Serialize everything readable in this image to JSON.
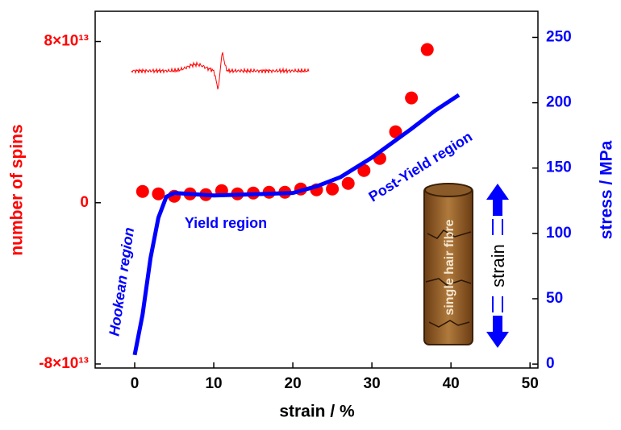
{
  "chart_data": {
    "type": "combo",
    "xlabel": "strain / %",
    "ylabel": "number of spins",
    "y2label": "stress / MPa",
    "xlim": [
      -5,
      51
    ],
    "xticks": [
      0,
      10,
      20,
      30,
      40,
      50
    ],
    "ylim": [
      -82000000000000.0,
      95000000000000.0
    ],
    "yticks": [
      {
        "value": -80000000000000.0,
        "label": "-8×10¹³"
      },
      0,
      {
        "value": 80000000000000.0,
        "label": "8×10¹³"
      }
    ],
    "y2lim": [
      -3,
      270
    ],
    "y2ticks": [
      0,
      50,
      100,
      150,
      200,
      250
    ],
    "series": [
      {
        "type": "scatter",
        "color": "#ff0000",
        "x": [
          1,
          3,
          5,
          7,
          9,
          11,
          13,
          15,
          17,
          19,
          21,
          23,
          25,
          27,
          29,
          31,
          33,
          35,
          37
        ],
        "values": [
          5600000000000.0,
          4400000000000.0,
          3200000000000.0,
          4400000000000.0,
          4000000000000.0,
          6000000000000.0,
          4400000000000.0,
          4800000000000.0,
          5200000000000.0,
          5200000000000.0,
          6800000000000.0,
          6400000000000.0,
          6800000000000.0,
          9600000000000.0,
          16000000000000.0,
          22000000000000.0,
          35200000000000.0,
          52000000000000.0,
          76000000000000.0
        ]
      },
      {
        "type": "line",
        "color": "#0000ff",
        "axis": "y2",
        "x": [
          0,
          1,
          2,
          3,
          4,
          5,
          10,
          15,
          20,
          23,
          26,
          30,
          35,
          38,
          41
        ],
        "values": [
          7,
          38,
          81,
          112,
          128,
          131,
          129,
          130,
          131,
          136,
          143,
          158,
          180,
          194,
          206
        ]
      }
    ],
    "annotations": [
      "Hookean region",
      "Yield region",
      "Post-Yield region",
      "single hair fibre",
      "strain"
    ]
  }
}
